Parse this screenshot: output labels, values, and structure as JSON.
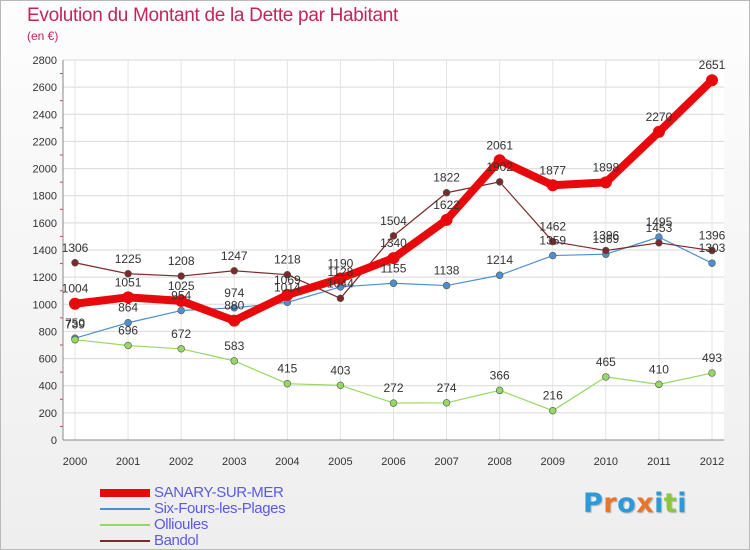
{
  "header": {
    "title": "Evolution du Montant de la Dette par Habitant",
    "subtitle": "(en €)"
  },
  "logo": {
    "text": "Proxiti",
    "colors": [
      "#2a9ad8",
      "#e8752a",
      "#2a9ad8",
      "#e8752a",
      "#2a9ad8",
      "#8cc63f",
      "#2a9ad8"
    ]
  },
  "chart_data": {
    "type": "line",
    "title": "Evolution du Montant de la Dette par Habitant",
    "ylabel": "(en €)",
    "xlabel": "",
    "x": [
      "2000",
      "2001",
      "2002",
      "2003",
      "2004",
      "2005",
      "2006",
      "2007",
      "2008",
      "2009",
      "2010",
      "2011",
      "2012"
    ],
    "ylim": [
      0,
      2800
    ],
    "yticks": [
      0,
      200,
      400,
      600,
      800,
      1000,
      1200,
      1400,
      1600,
      1800,
      2000,
      2200,
      2400,
      2600,
      2800
    ],
    "grid": true,
    "legend_position": "bottom-left",
    "series": [
      {
        "name": "SANARY-SUR-MER",
        "color": "#e8090d",
        "width": 8,
        "values": [
          1004,
          1051,
          1025,
          880,
          1069,
          1190,
          1340,
          1622,
          2061,
          1877,
          1898,
          2270,
          2651
        ]
      },
      {
        "name": "Six-Fours-les-Plages",
        "color": "#4e8fd0",
        "width": 1.2,
        "values": [
          750,
          864,
          954,
          974,
          1014,
          1128,
          1155,
          1138,
          1214,
          1359,
          1369,
          1495,
          1303
        ]
      },
      {
        "name": "Ollioules",
        "color": "#96d862",
        "width": 1.2,
        "values": [
          739,
          696,
          672,
          583,
          415,
          403,
          272,
          274,
          366,
          216,
          465,
          410,
          493
        ]
      },
      {
        "name": "Bandol",
        "color": "#7a2a2a",
        "width": 1.2,
        "values": [
          1306,
          1225,
          1208,
          1247,
          1218,
          1044,
          1504,
          1822,
          1902,
          1462,
          1396,
          1453,
          1396
        ]
      }
    ]
  }
}
